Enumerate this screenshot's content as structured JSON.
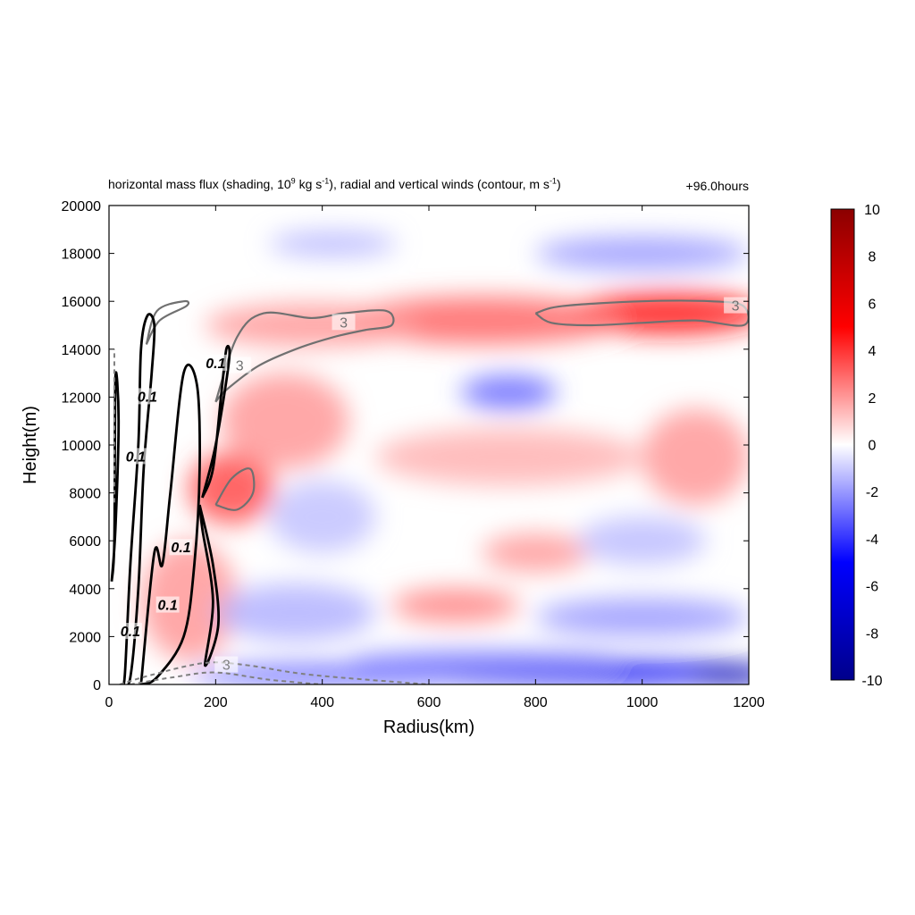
{
  "chart_data": {
    "type": "heatmap",
    "title": {
      "main": "horizontal mass flux (shading, 10",
      "sup1": "9",
      "mid1": " kg s",
      "sup2": "-1",
      "mid2": "), radial and vertical winds (contour, m s",
      "sup3": "-1",
      "end": ")"
    },
    "time_label": "+96.0hours",
    "xlabel": "Radius(km)",
    "ylabel": "Height(m)",
    "xlim": [
      0,
      1200
    ],
    "ylim": [
      0,
      20000
    ],
    "x_ticks": [
      "0",
      "200",
      "400",
      "600",
      "800",
      "1000",
      "1200"
    ],
    "y_ticks": [
      "0",
      "2000",
      "4000",
      "6000",
      "8000",
      "10000",
      "12000",
      "14000",
      "16000",
      "18000",
      "20000"
    ],
    "colorbar": {
      "range": [
        -10,
        10
      ],
      "ticks": [
        "-10",
        "-8",
        "-6",
        "-4",
        "-2",
        "0",
        "2",
        "4",
        "6",
        "8",
        "10"
      ],
      "colormap": [
        "#00008b",
        "#0000ff",
        "#ffffff",
        "#ff0000",
        "#8b0000"
      ]
    },
    "shading_blobs": [
      {
        "x": 1050,
        "y": 15500,
        "rx": 180,
        "ry": 900,
        "v": 4.5
      },
      {
        "x": 700,
        "y": 15200,
        "rx": 260,
        "ry": 1000,
        "v": 3.0
      },
      {
        "x": 380,
        "y": 15000,
        "rx": 200,
        "ry": 900,
        "v": 2.0
      },
      {
        "x": 750,
        "y": 12200,
        "rx": 90,
        "ry": 700,
        "v": -3.0
      },
      {
        "x": 1000,
        "y": 18000,
        "rx": 200,
        "ry": 700,
        "v": -2.0
      },
      {
        "x": 420,
        "y": 18400,
        "rx": 120,
        "ry": 500,
        "v": -1.5
      },
      {
        "x": 230,
        "y": 8200,
        "rx": 80,
        "ry": 1500,
        "v": 3.5
      },
      {
        "x": 330,
        "y": 11000,
        "rx": 120,
        "ry": 2000,
        "v": 2.0
      },
      {
        "x": 750,
        "y": 9500,
        "rx": 250,
        "ry": 1200,
        "v": 1.5
      },
      {
        "x": 1100,
        "y": 9500,
        "rx": 100,
        "ry": 2000,
        "v": 2.0
      },
      {
        "x": 650,
        "y": 3300,
        "rx": 120,
        "ry": 700,
        "v": 2.5
      },
      {
        "x": 800,
        "y": 5500,
        "rx": 100,
        "ry": 800,
        "v": 2.0
      },
      {
        "x": 150,
        "y": 3500,
        "rx": 90,
        "ry": 2500,
        "v": 2.0
      },
      {
        "x": 400,
        "y": 7000,
        "rx": 100,
        "ry": 1500,
        "v": -1.2
      },
      {
        "x": 350,
        "y": 3000,
        "rx": 150,
        "ry": 1200,
        "v": -1.5
      },
      {
        "x": 1000,
        "y": 6000,
        "rx": 120,
        "ry": 1000,
        "v": -1.3
      },
      {
        "x": 1000,
        "y": 2800,
        "rx": 200,
        "ry": 800,
        "v": -2.0
      },
      {
        "x": 900,
        "y": 500,
        "rx": 350,
        "ry": 500,
        "v": -5.5
      },
      {
        "x": 1170,
        "y": 400,
        "rx": 80,
        "ry": 400,
        "v": -8.5
      },
      {
        "x": 400,
        "y": 400,
        "rx": 250,
        "ry": 400,
        "v": -3.5
      },
      {
        "x": 700,
        "y": 1000,
        "rx": 250,
        "ry": 400,
        "v": -2.5
      }
    ],
    "contours": {
      "radial_wind_label": "3",
      "vertical_wind_label": "0.1",
      "vertical_wind": [
        {
          "points": [
            [
              25,
              0
            ],
            [
              30,
              500
            ],
            [
              40,
              5000
            ],
            [
              55,
              10000
            ],
            [
              60,
              14000
            ],
            [
              72,
              15400
            ],
            [
              85,
              15000
            ],
            [
              80,
              13000
            ],
            [
              65,
              9000
            ],
            [
              55,
              4000
            ],
            [
              40,
              300
            ],
            [
              25,
              0
            ]
          ],
          "label_pos": [
            [
              40,
              2200
            ],
            [
              50,
              9500
            ],
            [
              72,
              12000
            ]
          ]
        },
        {
          "points": [
            [
              60,
              0
            ],
            [
              85,
              5500
            ],
            [
              100,
              5000
            ],
            [
              115,
              8000
            ],
            [
              140,
              13000
            ],
            [
              165,
              12500
            ],
            [
              170,
              9000
            ],
            [
              160,
              5000
            ],
            [
              140,
              2000
            ],
            [
              90,
              300
            ],
            [
              60,
              0
            ]
          ],
          "label_pos": [
            [
              110,
              3300
            ],
            [
              135,
              5700
            ]
          ]
        },
        {
          "points": [
            [
              170,
              7500
            ],
            [
              195,
              5000
            ],
            [
              205,
              2500
            ],
            [
              180,
              800
            ],
            [
              195,
              3500
            ],
            [
              175,
              6500
            ],
            [
              170,
              7500
            ]
          ],
          "label_pos": []
        },
        {
          "points": [
            [
              175,
              7800
            ],
            [
              200,
              10000
            ],
            [
              225,
              13500
            ],
            [
              220,
              14000
            ],
            [
              210,
              12000
            ],
            [
              195,
              9000
            ],
            [
              175,
              7800
            ]
          ],
          "label_pos": [
            [
              200,
              13400
            ]
          ]
        },
        {
          "points": [
            [
              5,
              4300
            ],
            [
              10,
              6000
            ],
            [
              12,
              12800
            ],
            [
              18,
              11000
            ],
            [
              12,
              6500
            ],
            [
              5,
              4300
            ]
          ],
          "label_pos": []
        }
      ],
      "radial_wind": [
        {
          "points": [
            [
              200,
              11800
            ],
            [
              240,
              14500
            ],
            [
              290,
              15500
            ],
            [
              380,
              15300
            ],
            [
              440,
              15500
            ],
            [
              520,
              15600
            ],
            [
              530,
              15000
            ],
            [
              480,
              14800
            ],
            [
              420,
              14500
            ],
            [
              350,
              14000
            ],
            [
              280,
              13300
            ],
            [
              220,
              12300
            ],
            [
              200,
              11800
            ]
          ],
          "label_pos": [
            [
              440,
              15100
            ],
            [
              245,
              13300
            ]
          ]
        },
        {
          "points": [
            [
              800,
              15500
            ],
            [
              850,
              15800
            ],
            [
              1000,
              16000
            ],
            [
              1130,
              16000
            ],
            [
              1190,
              15800
            ],
            [
              1190,
              15000
            ],
            [
              1100,
              15200
            ],
            [
              1000,
              15100
            ],
            [
              900,
              15000
            ],
            [
              830,
              15100
            ],
            [
              800,
              15500
            ]
          ],
          "label_pos": [
            [
              1175,
              15800
            ]
          ]
        },
        {
          "points": [
            [
              70,
              14200
            ],
            [
              90,
              15600
            ],
            [
              140,
              16000
            ],
            [
              145,
              15800
            ],
            [
              95,
              15200
            ],
            [
              70,
              14200
            ]
          ],
          "label_pos": []
        },
        {
          "points": [
            [
              200,
              7500
            ],
            [
              230,
              8600
            ],
            [
              265,
              9000
            ],
            [
              270,
              8000
            ],
            [
              240,
              7300
            ],
            [
              200,
              7500
            ]
          ],
          "label_pos": []
        }
      ],
      "dashed_lines": [
        {
          "points": [
            [
              20,
              0
            ],
            [
              80,
              400
            ],
            [
              180,
              900
            ],
            [
              260,
              800
            ],
            [
              380,
              400
            ],
            [
              600,
              0
            ]
          ],
          "label_pos": [
            [
              220,
              800
            ]
          ]
        },
        {
          "points": [
            [
              40,
              0
            ],
            [
              120,
              300
            ],
            [
              200,
              500
            ],
            [
              300,
              200
            ],
            [
              400,
              0
            ]
          ],
          "label_pos": []
        },
        {
          "points": [
            [
              10,
              7600
            ],
            [
              10,
              14000
            ]
          ],
          "label_pos": []
        }
      ]
    }
  }
}
